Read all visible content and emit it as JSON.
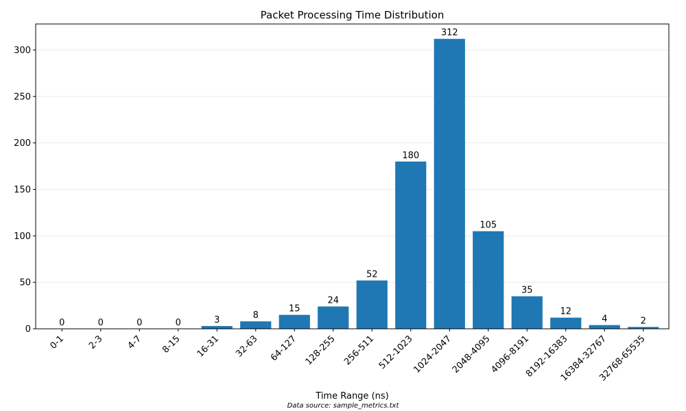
{
  "chart_data": {
    "type": "bar",
    "title": "Packet Processing Time Distribution",
    "xlabel": "Time Range (ns)",
    "ylabel": "",
    "footnote": "Data source: sample_metrics.txt",
    "categories": [
      "0-1",
      "2-3",
      "4-7",
      "8-15",
      "16-31",
      "32-63",
      "64-127",
      "128-255",
      "256-511",
      "512-1023",
      "1024-2047",
      "2048-4095",
      "4096-8191",
      "8192-16383",
      "16384-32767",
      "32768-65535"
    ],
    "values": [
      0,
      0,
      0,
      0,
      3,
      8,
      15,
      24,
      52,
      180,
      312,
      105,
      35,
      12,
      4,
      2
    ],
    "ylim": [
      0,
      328
    ],
    "yticks": [
      0,
      50,
      100,
      150,
      200,
      250,
      300
    ],
    "grid": "horizontal",
    "bar_color": "#1f77b4",
    "grid_color": "#e6e6e6"
  }
}
